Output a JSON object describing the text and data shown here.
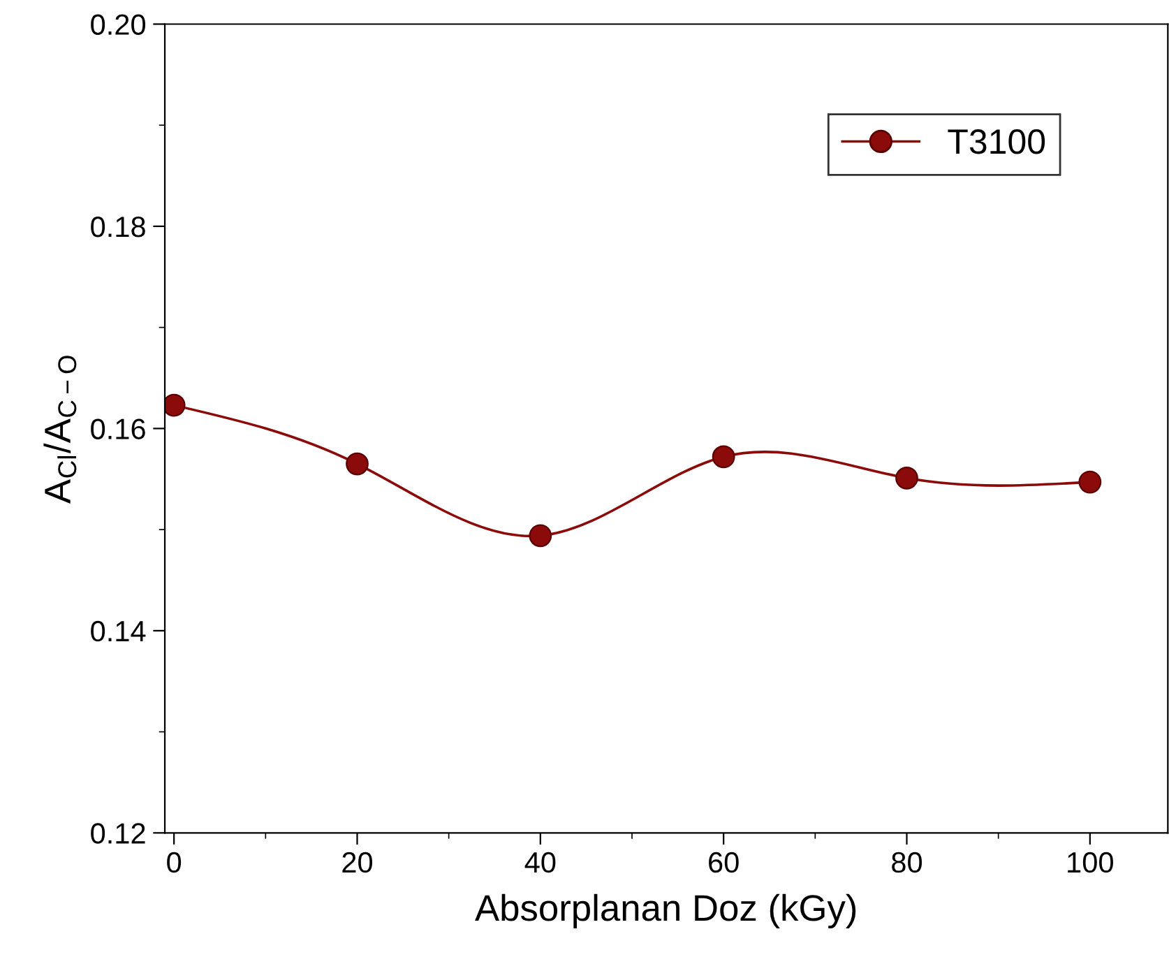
{
  "chart_data": {
    "type": "line",
    "xlabel": "Absorplanan Doz (kGy)",
    "ylabel": "A$_{Cl}$/A$_{C−O}$",
    "x": [
      0,
      20,
      40,
      60,
      80,
      100
    ],
    "series": [
      {
        "name": "T3100",
        "color": "#8b0a0a",
        "values": [
          0.1623,
          0.1565,
          0.1494,
          0.1572,
          0.1551,
          0.1547
        ]
      }
    ],
    "xlim": [
      -1,
      108.5
    ],
    "ylim": [
      0.12,
      0.2
    ],
    "xticks": [
      0,
      20,
      40,
      60,
      80,
      100
    ],
    "yticks": [
      {
        "value": 0.12,
        "label": "0.12"
      },
      {
        "value": 0.14,
        "label": "0.14"
      },
      {
        "value": 0.16,
        "label": "0.16"
      },
      {
        "value": 0.18,
        "label": "0.18"
      },
      {
        "value": 0.2,
        "label": "0.20"
      }
    ],
    "marker": "circle",
    "line_style": "solid",
    "legend": "top right",
    "grid": false
  }
}
